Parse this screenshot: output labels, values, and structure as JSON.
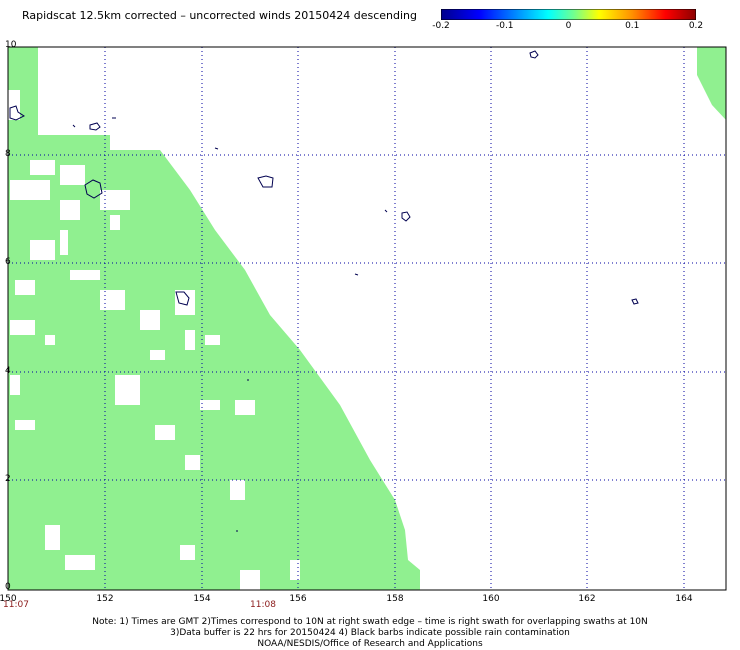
{
  "title": "Rapidscat 12.5km corrected – uncorrected winds 20150424 descending",
  "colorbar": {
    "labels": [
      "-0.2",
      "-0.1",
      "0",
      "0.1",
      "0.2"
    ],
    "values": [
      -0.2,
      -0.1,
      0,
      0.1,
      0.2
    ]
  },
  "axes": {
    "x_ticks": [
      "150",
      "152",
      "154",
      "156",
      "158",
      "160",
      "162",
      "164"
    ],
    "y_ticks": [
      "0",
      "2",
      "4",
      "6",
      "8",
      "10"
    ],
    "lon_range": [
      150,
      165
    ],
    "lat_range": [
      0,
      10
    ]
  },
  "times": {
    "left": "11:07",
    "middle": "11:08"
  },
  "notes": {
    "line1": "Note: 1) Times are GMT 2)Times correspond to 10N at right swath edge – time is right swath for overlapping swaths at 10N",
    "line2": "3)Data buffer is 22 hrs for 20150424 4) Black barbs indicate possible rain contamination",
    "line3": "NOAA/NESDIS/Office of Research and Applications"
  },
  "colors": {
    "swath": "#90F090",
    "grid": "#0000A0",
    "coast": "#000050"
  }
}
